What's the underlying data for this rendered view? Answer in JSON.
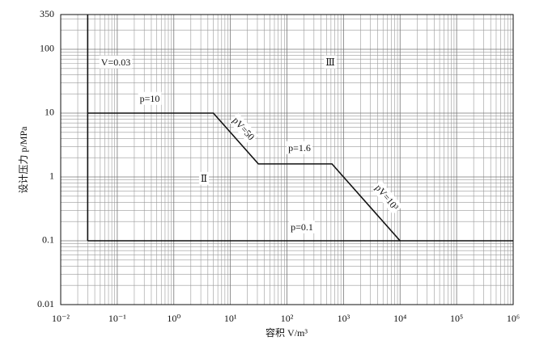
{
  "chart_data": {
    "type": "line",
    "xlabel": "容积 V/m³",
    "ylabel": "设计压力 p/MPa",
    "log_x": true,
    "log_y": true,
    "grid": true,
    "xlim": [
      0.01,
      1000000
    ],
    "ylim": [
      0.01,
      350
    ],
    "xticks": [
      {
        "value": 0.01,
        "label": "10⁻²"
      },
      {
        "value": 0.1,
        "label": "10⁻¹"
      },
      {
        "value": 1,
        "label": "10⁰"
      },
      {
        "value": 10,
        "label": "10¹"
      },
      {
        "value": 100,
        "label": "10²"
      },
      {
        "value": 1000,
        "label": "10³"
      },
      {
        "value": 10000,
        "label": "10⁴"
      },
      {
        "value": 100000,
        "label": "10⁵"
      },
      {
        "value": 1000000,
        "label": "10⁶"
      }
    ],
    "yticks": [
      0.01,
      0.1,
      1,
      10,
      100,
      350
    ],
    "series": [
      {
        "color": "#111111",
        "x": [
          0.03,
          0.03
        ],
        "values": [
          0.1,
          350
        ]
      },
      {
        "color": "#111111",
        "x": [
          0.03,
          1000000
        ],
        "values": [
          0.1,
          0.1
        ]
      },
      {
        "color": "#111111",
        "x": [
          0.03,
          5,
          31.25,
          625,
          10000
        ],
        "values": [
          10,
          10,
          1.6,
          1.6,
          0.1
        ]
      }
    ],
    "annotations": [
      "V=0.03",
      "p=10",
      "pV=50",
      "p=1.6",
      "pV=10³",
      "p=0.1",
      "Ⅱ",
      "Ⅲ"
    ]
  }
}
